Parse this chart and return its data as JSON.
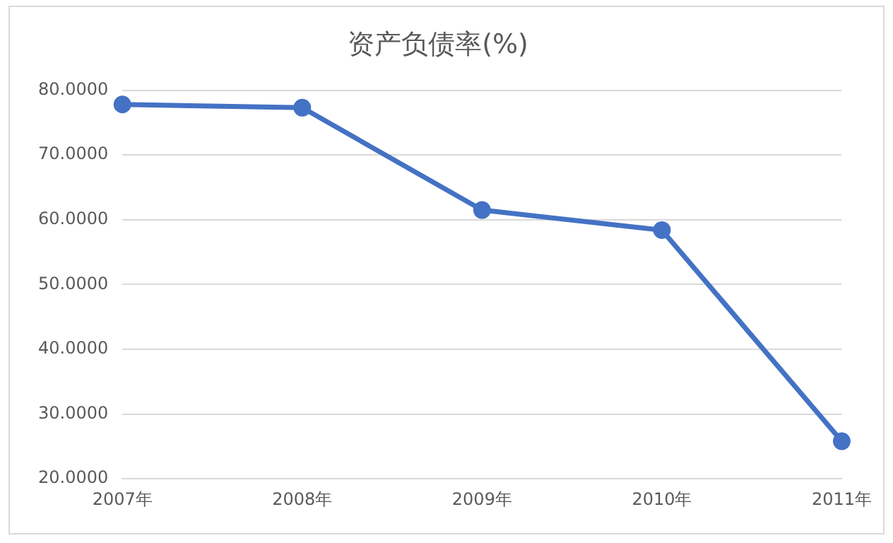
{
  "chart_data": {
    "type": "line",
    "title": "资产负债率(%)",
    "categories": [
      "2007年",
      "2008年",
      "2009年",
      "2010年",
      "2011年"
    ],
    "series": [
      {
        "color": "#4472c4",
        "values": [
          77.8,
          77.3,
          61.5,
          58.4,
          25.8
        ]
      }
    ],
    "ylim": [
      20,
      80
    ],
    "yticks": [
      {
        "value": 20,
        "label": "20.0000"
      },
      {
        "value": 30,
        "label": "30.0000"
      },
      {
        "value": 40,
        "label": "40.0000"
      },
      {
        "value": 50,
        "label": "50.0000"
      },
      {
        "value": 60,
        "label": "60.0000"
      },
      {
        "value": 70,
        "label": "70.0000"
      },
      {
        "value": 80,
        "label": "80.0000"
      }
    ],
    "grid": "y",
    "marker": "circle",
    "line_style": "solid"
  }
}
